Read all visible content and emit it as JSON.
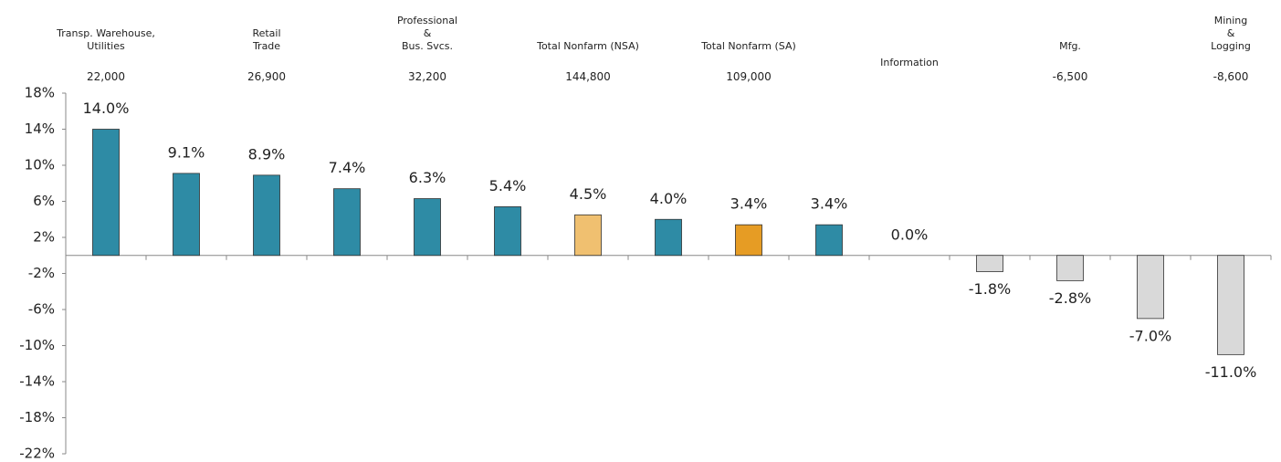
{
  "chart_data": {
    "type": "bar",
    "categories": [
      "Transp. Warehouse,\nUtilities",
      null,
      "Retail\nTrade",
      null,
      "Professional\n&\nBus. Svcs.",
      null,
      "Total Nonfarm (NSA)",
      null,
      "Total Nonfarm (SA)",
      null,
      "Information",
      null,
      "Mfg.",
      null,
      "Mining\n&\nLogging"
    ],
    "category_numbers": [
      "22,000",
      null,
      "26,900",
      null,
      "32,200",
      null,
      "144,800",
      null,
      "109,000",
      null,
      null,
      null,
      "-6,500",
      null,
      "-8,600"
    ],
    "values": [
      14.0,
      9.1,
      8.9,
      7.4,
      6.3,
      5.4,
      4.5,
      4.0,
      3.4,
      3.4,
      0.0,
      -1.8,
      -2.8,
      -7.0,
      -11.0
    ],
    "value_labels": [
      "14.0%",
      "9.1%",
      "8.9%",
      "7.4%",
      "6.3%",
      "5.4%",
      "4.5%",
      "4.0%",
      "3.4%",
      "3.4%",
      "0.0%",
      "-1.8%",
      "-2.8%",
      "-7.0%",
      "-11.0%"
    ],
    "colors": [
      "#2e8ba5",
      "#2e8ba5",
      "#2e8ba5",
      "#2e8ba5",
      "#2e8ba5",
      "#2e8ba5",
      "#f0c070",
      "#2e8ba5",
      "#e69c24",
      "#2e8ba5",
      "#2e8ba5",
      "#d9d9d9",
      "#d9d9d9",
      "#d9d9d9",
      "#d9d9d9"
    ],
    "ylim": [
      -22,
      18
    ],
    "yticks": [
      {
        "value": 18,
        "label": "18%"
      },
      {
        "value": 14,
        "label": "14%"
      },
      {
        "value": 10,
        "label": "10%"
      },
      {
        "value": 6,
        "label": "6%"
      },
      {
        "value": 2,
        "label": "2%"
      },
      {
        "value": -2,
        "label": "-2%"
      },
      {
        "value": -6,
        "label": "-6%"
      },
      {
        "value": -10,
        "label": "-10%"
      },
      {
        "value": -14,
        "label": "-14%"
      },
      {
        "value": -18,
        "label": "-18%"
      },
      {
        "value": -22,
        "label": "-22%"
      }
    ],
    "grid": false
  }
}
